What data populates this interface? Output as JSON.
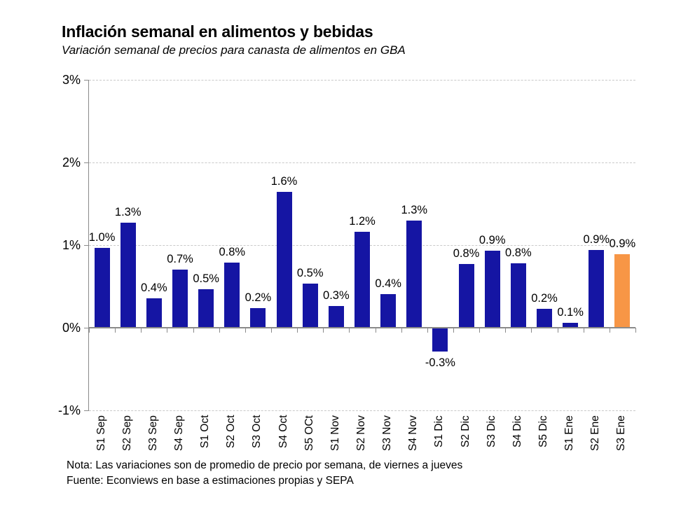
{
  "chart_data": {
    "type": "bar",
    "title": "Inflación semanal en alimentos y bebidas",
    "subtitle": "Variación semanal de precios para canasta de alimentos en GBA",
    "categories": [
      "S1 Sep",
      "S2 Sep",
      "S3 Sep",
      "S4 Sep",
      "S1 Oct",
      "S2 Oct",
      "S3 Oct",
      "S4 Oct",
      "S5 OCt",
      "S1 Nov",
      "S2 Nov",
      "S3 Nov",
      "S4 Nov",
      "S1 Dic",
      "S2 Dic",
      "S3 Dic",
      "S4 Dic",
      "S5 Dic",
      "S1 Ene",
      "S2 Ene",
      "S3 Ene"
    ],
    "values": [
      0.97,
      1.27,
      0.36,
      0.7,
      0.47,
      0.79,
      0.24,
      1.64,
      0.53,
      0.26,
      1.16,
      0.41,
      1.3,
      -0.28,
      0.77,
      0.93,
      0.78,
      0.23,
      0.06,
      0.94,
      0.89
    ],
    "point_labels": [
      "1.0%",
      "1.3%",
      "0.4%",
      "0.7%",
      "0.5%",
      "0.8%",
      "0.2%",
      "1.6%",
      "0.5%",
      "0.3%",
      "1.2%",
      "0.4%",
      "1.3%",
      "-0.3%",
      "0.8%",
      "0.9%",
      "0.8%",
      "0.2%",
      "0.1%",
      "0.9%",
      "0.9%"
    ],
    "ylim": [
      -1,
      3
    ],
    "ytick_labels": [
      "3%",
      "2%",
      "1%",
      "0%",
      "-1%"
    ],
    "ytick_values": [
      3,
      2,
      1,
      0,
      -1
    ],
    "grid": "horizontal-dashed",
    "legend": "none",
    "xlabel": "",
    "ylabel": "",
    "highlight_index": 20,
    "colors": {
      "bar_default": "#1515A3",
      "bar_highlight": "#F79646",
      "axis": "#8A8A8A",
      "gridline": "#C9C9C9",
      "text": "#000000"
    }
  },
  "footnotes": {
    "note": "Nota: Las variaciones son de promedio de precio por semana, de viernes a jueves",
    "source": "Fuente: Econviews en base a estimaciones propias y SEPA"
  }
}
